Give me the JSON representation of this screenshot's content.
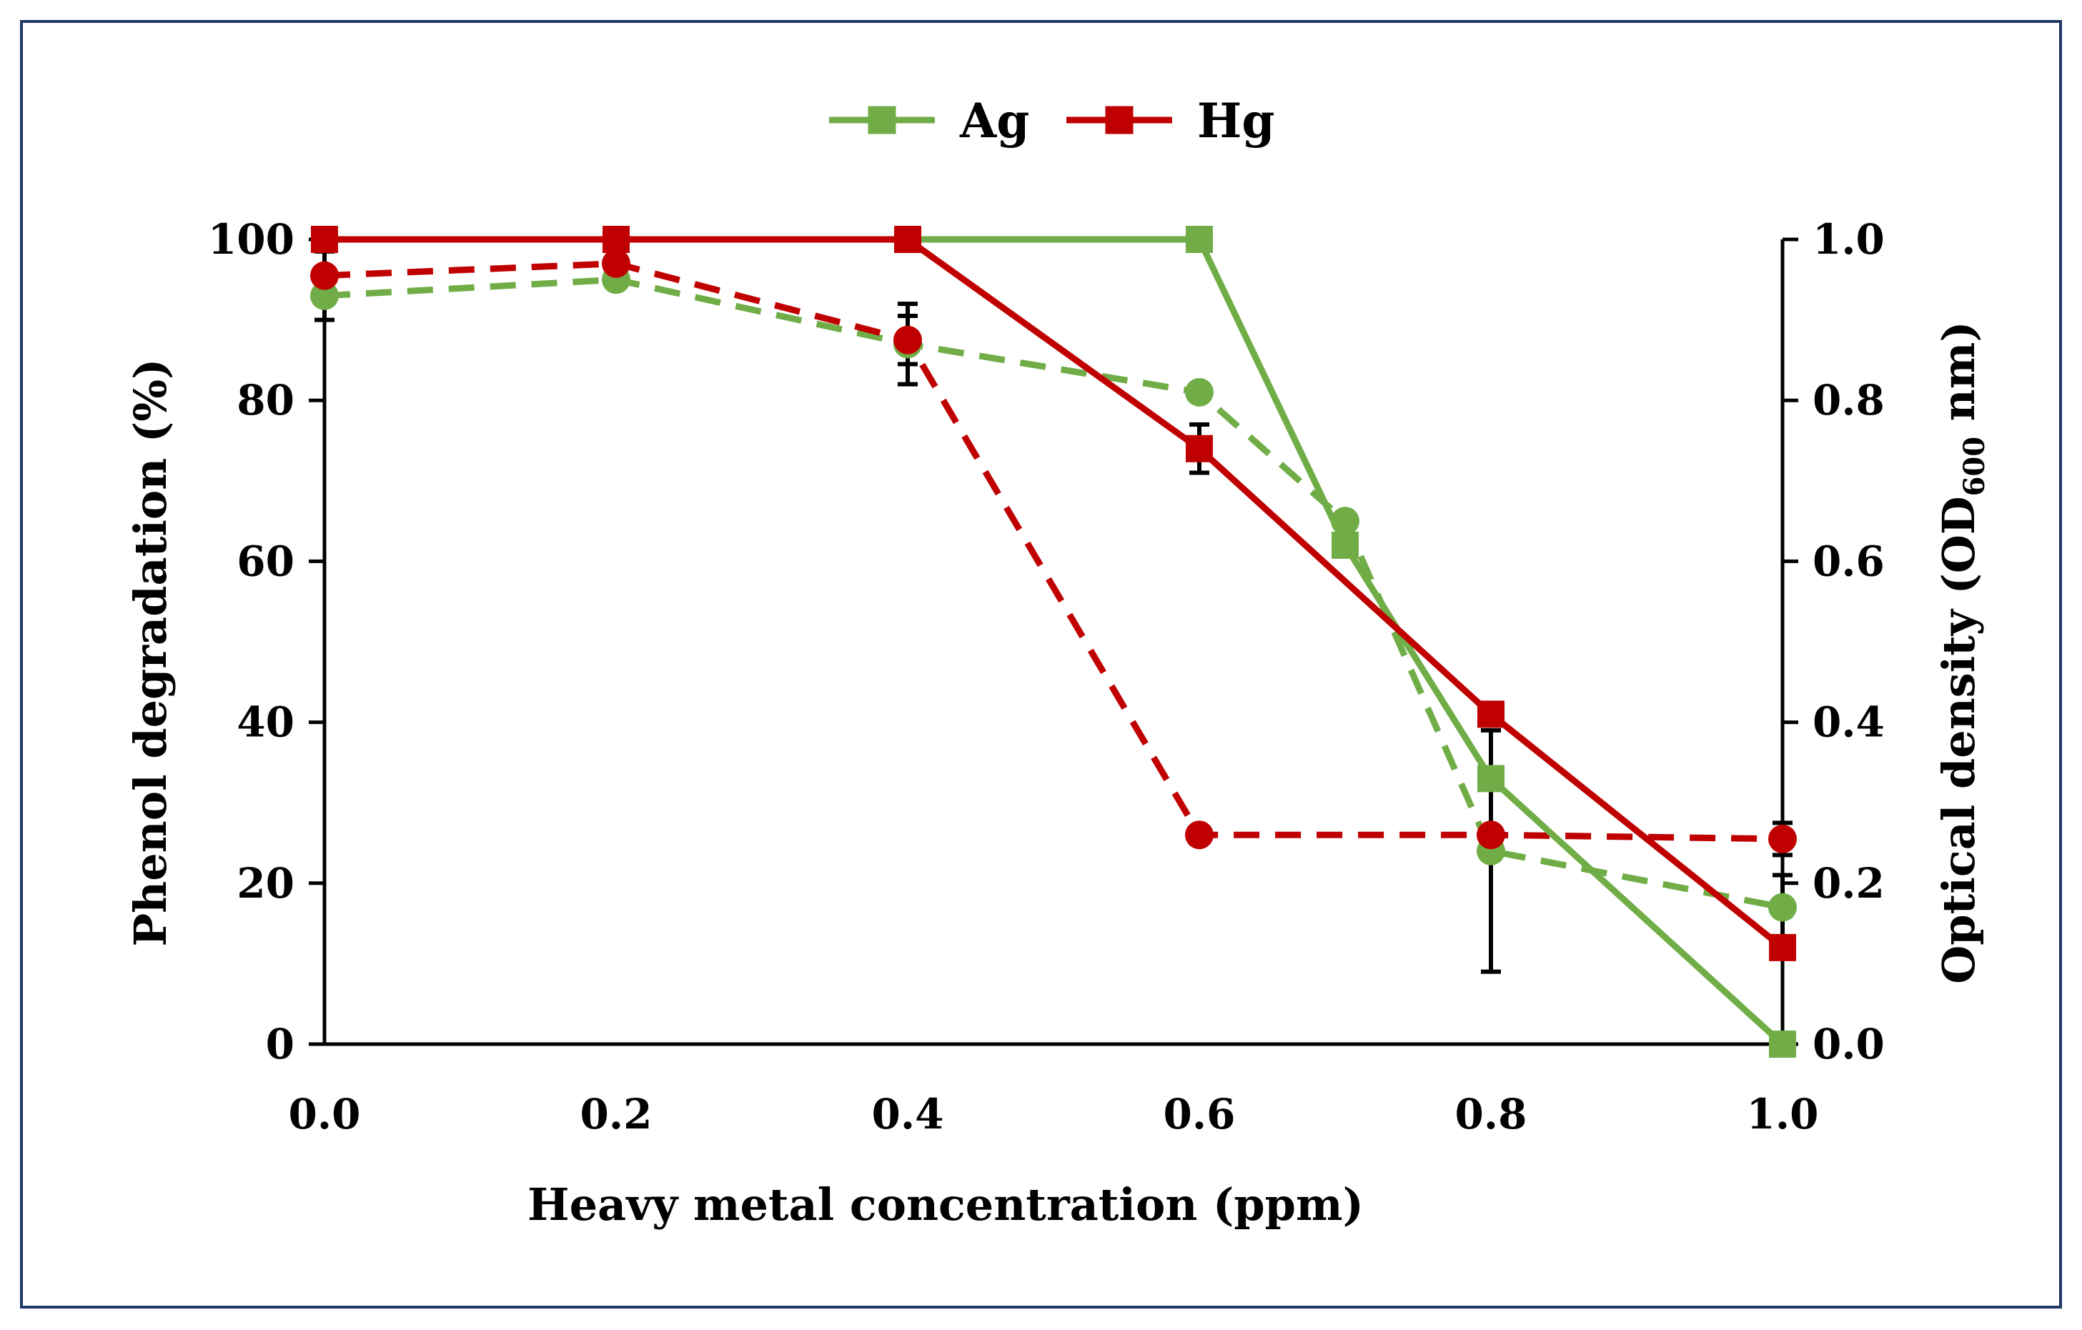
{
  "chart_data": {
    "type": "line",
    "title": "",
    "xlabel": "Heavy metal concentration (ppm)",
    "ylabel_left": "Phenol degradation (%)",
    "ylabel_right": {
      "main": "Optical density (OD",
      "sub": "600",
      "tail": " nm)"
    },
    "xlim": [
      0.0,
      1.0
    ],
    "ylim_left": [
      0,
      100
    ],
    "ylim_right": [
      0.0,
      1.0
    ],
    "x_ticks": [
      "0.0",
      "0.2",
      "0.4",
      "0.6",
      "0.8",
      "1.0"
    ],
    "y_left_ticks": [
      "0",
      "20",
      "40",
      "60",
      "80",
      "100"
    ],
    "y_right_ticks": [
      "0.0",
      "0.2",
      "0.4",
      "0.6",
      "0.8",
      "1.0"
    ],
    "legend": {
      "position": "top-center",
      "entries": [
        "Ag",
        "Hg"
      ]
    },
    "colors": {
      "Ag": "#70ad47",
      "Hg": "#c00000",
      "frame": "#1f3864",
      "axis": "#000000"
    },
    "series": [
      {
        "name": "Ag",
        "metric": "phenol degradation",
        "axis": "left",
        "style": "solid",
        "marker": "square",
        "x": [
          0.0,
          0.2,
          0.4,
          0.6,
          0.7,
          0.8,
          1.0
        ],
        "y": [
          100,
          100,
          100,
          100,
          62,
          33,
          0
        ],
        "err": [
          0,
          0,
          0,
          0,
          0,
          0,
          0
        ]
      },
      {
        "name": "Hg",
        "metric": "phenol degradation",
        "axis": "left",
        "style": "solid",
        "marker": "square",
        "x": [
          0.0,
          0.2,
          0.4,
          0.6,
          0.8,
          1.0
        ],
        "y": [
          100,
          100,
          100,
          74,
          41,
          12
        ],
        "err": [
          0,
          0,
          0,
          3,
          0,
          0
        ]
      },
      {
        "name": "Ag",
        "metric": "optical density",
        "axis": "right",
        "style": "dashed",
        "marker": "circle",
        "x": [
          0.0,
          0.2,
          0.4,
          0.6,
          0.7,
          0.8,
          1.0
        ],
        "y": [
          0.93,
          0.95,
          0.87,
          0.81,
          0.65,
          0.24,
          0.17
        ],
        "err": [
          0.03,
          0.01,
          0.05,
          0.0,
          0.0,
          0.15,
          0.04
        ]
      },
      {
        "name": "Hg",
        "metric": "optical density",
        "axis": "right",
        "style": "dashed",
        "marker": "circle",
        "x": [
          0.0,
          0.2,
          0.4,
          0.6,
          0.8,
          1.0
        ],
        "y": [
          0.955,
          0.97,
          0.875,
          0.26,
          0.26,
          0.255
        ],
        "err": [
          0.03,
          0.02,
          0.03,
          0.0,
          0.0,
          0.02
        ]
      }
    ]
  }
}
